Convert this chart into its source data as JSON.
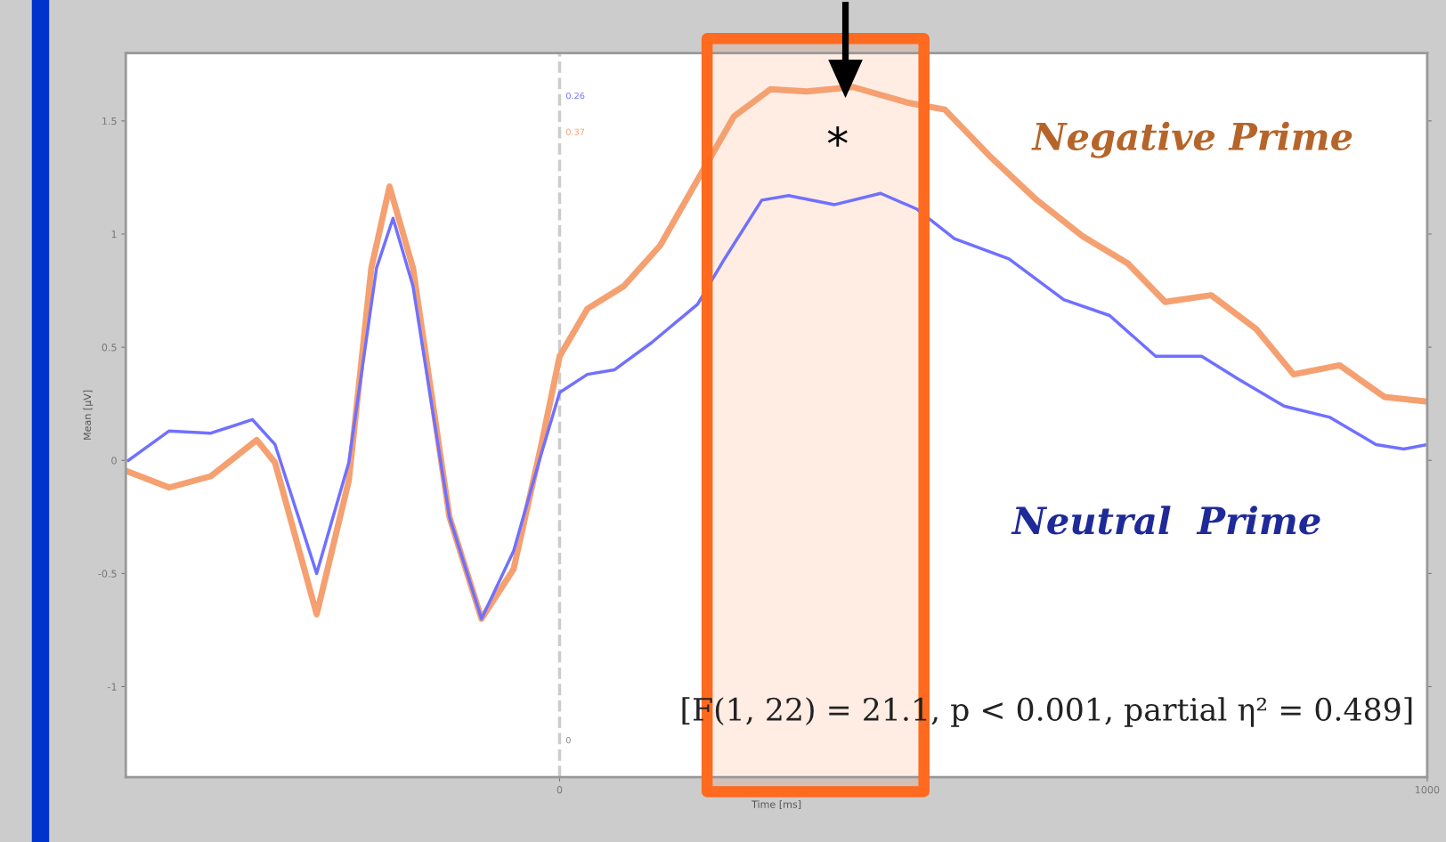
{
  "chart_data": {
    "type": "line",
    "xlabel": "Time [ms]",
    "ylabel": "Mean [µV]",
    "xlim": [
      -500,
      1000
    ],
    "xticks": [
      0,
      1000
    ],
    "ylim": [
      -1.4,
      1.8
    ],
    "yticks": [
      -1,
      -0.5,
      0,
      0.5,
      1,
      1.5
    ],
    "grid": false,
    "line_style": "solid",
    "marker": "none",
    "series": [
      {
        "name": "Negative Prime",
        "color": "#f5a070",
        "x": [
          -497,
          -450,
          -402,
          -349,
          -328,
          -280,
          -243,
          -217,
          -196,
          -169,
          -127,
          -90,
          -53,
          -21,
          0,
          32,
          74,
          116,
          159,
          201,
          243,
          285,
          338,
          402,
          444,
          497,
          550,
          603,
          655,
          698,
          751,
          803,
          846,
          899,
          951,
          1000
        ],
        "values": [
          -0.05,
          -0.12,
          -0.07,
          0.09,
          -0.01,
          -0.68,
          -0.09,
          0.85,
          1.21,
          0.85,
          -0.25,
          -0.7,
          -0.48,
          0.07,
          0.46,
          0.67,
          0.77,
          0.95,
          1.24,
          1.52,
          1.64,
          1.63,
          1.65,
          1.58,
          1.55,
          1.34,
          1.15,
          0.99,
          0.87,
          0.7,
          0.73,
          0.58,
          0.38,
          0.42,
          0.28,
          0.26
        ]
      },
      {
        "name": "Neutral  Prime",
        "color": "#7070ff",
        "x": [
          -497,
          -450,
          -402,
          -354,
          -328,
          -280,
          -243,
          -211,
          -192,
          -169,
          -127,
          -90,
          -53,
          -21,
          0,
          32,
          63,
          106,
          159,
          190,
          233,
          264,
          317,
          370,
          412,
          455,
          518,
          581,
          634,
          687,
          740,
          782,
          835,
          888,
          941,
          973,
          1000
        ],
        "values": [
          0,
          0.13,
          0.12,
          0.18,
          0.07,
          -0.5,
          -0.01,
          0.85,
          1.07,
          0.77,
          -0.25,
          -0.7,
          -0.4,
          0.03,
          0.3,
          0.38,
          0.4,
          0.52,
          0.69,
          0.89,
          1.15,
          1.17,
          1.13,
          1.18,
          1.11,
          0.98,
          0.89,
          0.71,
          0.64,
          0.46,
          0.46,
          0.36,
          0.24,
          0.19,
          0.07,
          0.05,
          0.07
        ]
      }
    ],
    "ref_lines": [
      {
        "axis": "x",
        "value": 0,
        "color": "#cccccc",
        "line_style": "dashed"
      }
    ],
    "bands": [
      {
        "axis": "x",
        "from": 170,
        "to": 420,
        "color": "#ff6a1f"
      }
    ],
    "annotations": [
      "*",
      "[F(1, 22) = 21.1, p < 0.001, partial η² = 0.489]",
      "0.26",
      "0.37",
      "0"
    ]
  }
}
